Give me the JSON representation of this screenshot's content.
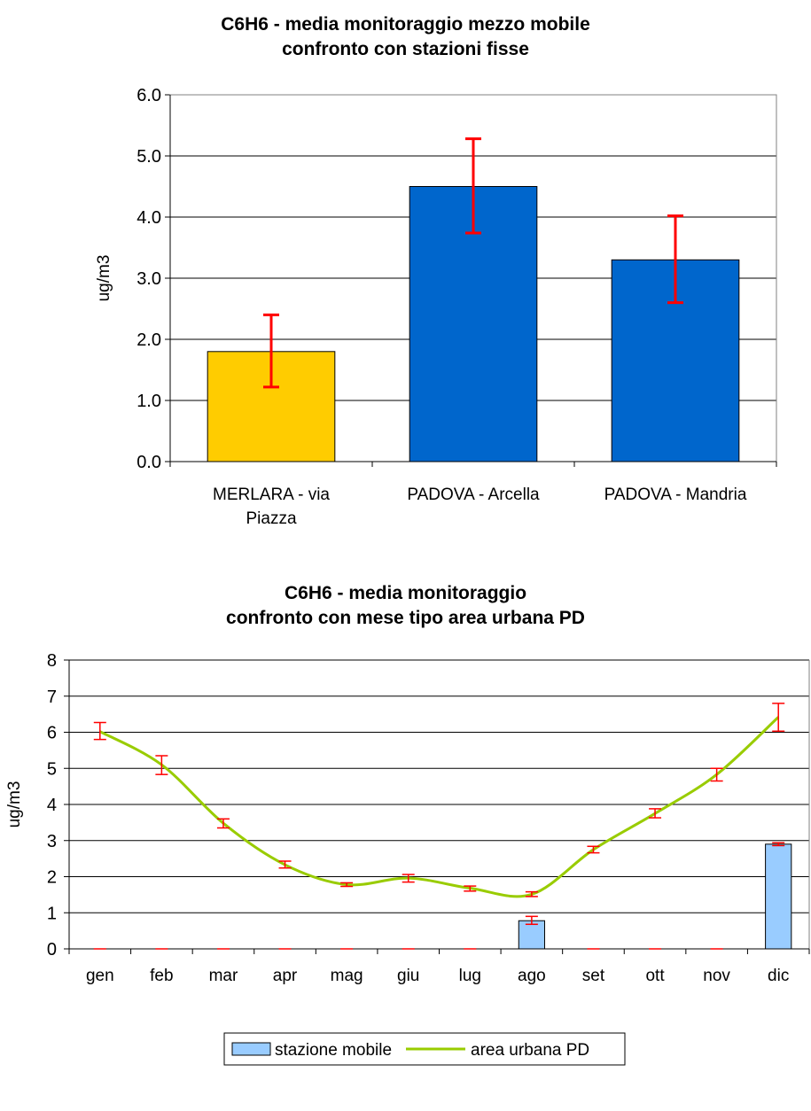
{
  "chart_data": [
    {
      "type": "bar",
      "title": [
        "C6H6 - media monitoraggio mezzo mobile",
        "confronto con stazioni fisse"
      ],
      "ylabel": "ug/m3",
      "xlabel": "",
      "ylim": [
        0,
        6
      ],
      "yticks": [
        "0.0",
        "1.0",
        "2.0",
        "3.0",
        "4.0",
        "5.0",
        "6.0"
      ],
      "grid": true,
      "categories": [
        [
          "MERLARA - via",
          "Piazza"
        ],
        [
          "PADOVA - Arcella"
        ],
        [
          "PADOVA - Mandria"
        ]
      ],
      "values": [
        1.8,
        4.5,
        3.3
      ],
      "error_low": [
        1.22,
        3.74,
        2.6
      ],
      "error_high": [
        2.4,
        5.28,
        4.02
      ],
      "bar_colors": [
        "#FFCC00",
        "#0066CC",
        "#0066CC"
      ],
      "error_color": "#FF0000"
    },
    {
      "type": "bar+line",
      "title": [
        "C6H6 -  media monitoraggio",
        "confronto con mese tipo area urbana PD"
      ],
      "ylabel": "ug/m3",
      "xlabel": "",
      "ylim": [
        0,
        8
      ],
      "yticks": [
        "0",
        "1",
        "2",
        "3",
        "4",
        "5",
        "6",
        "7",
        "8"
      ],
      "grid": true,
      "categories": [
        "gen",
        "feb",
        "mar",
        "apr",
        "mag",
        "giu",
        "lug",
        "ago",
        "set",
        "ott",
        "nov",
        "dic"
      ],
      "series": [
        {
          "name": "stazione mobile",
          "type": "bar",
          "color": "#99CCFF",
          "values": [
            0,
            0,
            0,
            0,
            0,
            0,
            0,
            0.78,
            0,
            0,
            0,
            2.9
          ],
          "error_low": [
            0,
            0,
            0,
            0,
            0,
            0,
            0,
            0.68,
            0,
            0,
            0,
            2.86
          ],
          "error_high": [
            0,
            0,
            0,
            0,
            0,
            0,
            0,
            0.9,
            0,
            0,
            0,
            2.94
          ]
        },
        {
          "name": "area urbana PD",
          "type": "line",
          "color": "#99CC00",
          "values": [
            6.02,
            5.1,
            3.48,
            2.33,
            1.78,
            1.96,
            1.68,
            1.51,
            2.75,
            3.75,
            4.83,
            6.42
          ],
          "error_low": [
            5.8,
            4.83,
            3.35,
            2.24,
            1.73,
            1.85,
            1.6,
            1.45,
            2.66,
            3.63,
            4.65,
            6.03
          ],
          "error_high": [
            6.27,
            5.35,
            3.6,
            2.43,
            1.83,
            2.06,
            1.74,
            1.58,
            2.84,
            3.88,
            5.0,
            6.8
          ]
        }
      ],
      "error_color": "#FF0000",
      "legend_position": "bottom"
    }
  ]
}
